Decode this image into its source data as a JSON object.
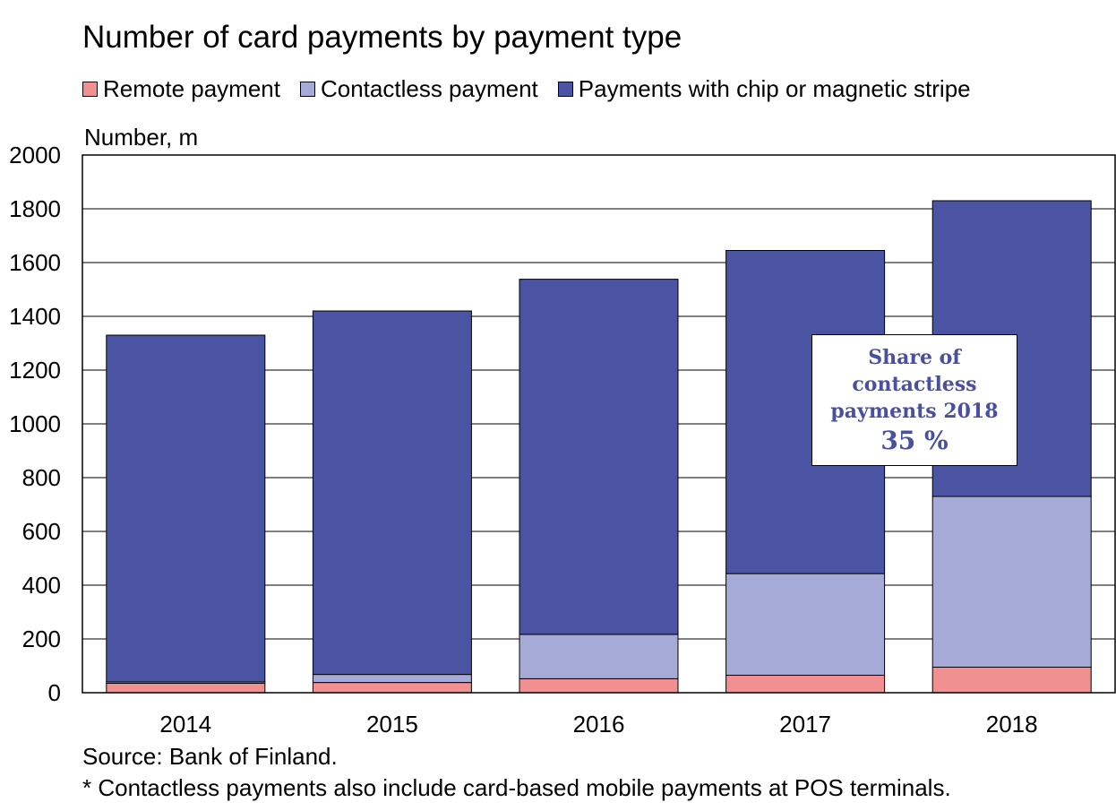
{
  "chart_data": {
    "type": "bar",
    "stacked": true,
    "title": "Number of card payments by payment type",
    "ylabel": "Number, m",
    "ylim": [
      0,
      2000
    ],
    "yticks": [
      0,
      200,
      400,
      600,
      800,
      1000,
      1200,
      1400,
      1600,
      1800,
      2000
    ],
    "grid": true,
    "legend_position": "top",
    "categories": [
      "2014",
      "2015",
      "2016",
      "2017",
      "2018"
    ],
    "series": [
      {
        "name": "Remote payment",
        "color": "#f09090",
        "values": [
          35,
          38,
          52,
          65,
          95
        ]
      },
      {
        "name": "Contactless payment",
        "color": "#a6aad6",
        "values": [
          5,
          30,
          165,
          378,
          635
        ]
      },
      {
        "name": "Payments with chip or magnetic stripe",
        "color": "#4b53a3",
        "values": [
          1290,
          1352,
          1321,
          1202,
          1100
        ]
      }
    ],
    "annotation": {
      "lines": [
        "Share of",
        "contactless",
        "payments 2018"
      ],
      "value": "35 %"
    },
    "source": "Source: Bank of Finland.",
    "note": "* Contactless payments also include card-based mobile payments at POS terminals."
  }
}
